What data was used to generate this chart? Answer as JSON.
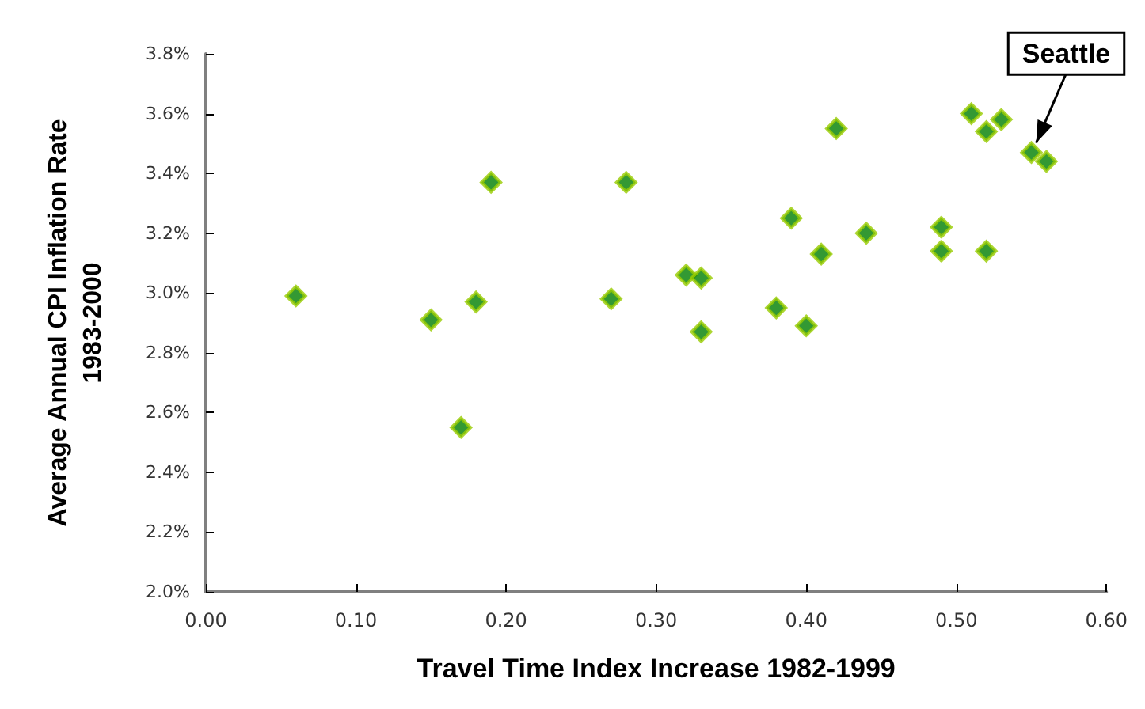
{
  "chart_data": {
    "type": "scatter",
    "xlabel": "Travel Time Index Increase 1982-1999",
    "ylabel": "Average Annual CPI Inflation Rate\n1983-2000",
    "x": [
      0.06,
      0.15,
      0.17,
      0.18,
      0.19,
      0.27,
      0.28,
      0.32,
      0.33,
      0.33,
      0.38,
      0.4,
      0.39,
      0.41,
      0.42,
      0.44,
      0.49,
      0.49,
      0.52,
      0.51,
      0.52,
      0.53,
      0.55,
      0.56
    ],
    "series": [
      {
        "color": "#008000",
        "values": [
          2.99,
          2.91,
          2.55,
          2.97,
          3.37,
          2.98,
          3.37,
          3.06,
          3.05,
          2.87,
          2.95,
          2.89,
          3.25,
          3.13,
          3.55,
          3.2,
          3.22,
          3.14,
          3.14,
          3.6,
          3.54,
          3.58,
          3.47,
          3.44
        ]
      }
    ],
    "xlim": [
      0,
      0.6
    ],
    "xticks": [
      {
        "value": 0,
        "label": "0.00"
      },
      {
        "value": 0.1,
        "label": "0.10"
      },
      {
        "value": 0.2,
        "label": "0.20"
      },
      {
        "value": 0.3,
        "label": "0.30"
      },
      {
        "value": 0.4,
        "label": "0.40"
      },
      {
        "value": 0.5,
        "label": "0.50"
      },
      {
        "value": 0.6,
        "label": "0.60"
      }
    ],
    "ylim": [
      2.0,
      3.8
    ],
    "yticks": [
      {
        "value": 2.0,
        "label": "2.0%"
      },
      {
        "value": 2.2,
        "label": "2.2%"
      },
      {
        "value": 2.4,
        "label": "2.4%"
      },
      {
        "value": 2.6,
        "label": "2.6%"
      },
      {
        "value": 2.8,
        "label": "2.8%"
      },
      {
        "value": 3.0,
        "label": "3.0%"
      },
      {
        "value": 3.2,
        "label": "3.2%"
      },
      {
        "value": 3.4,
        "label": "3.4%"
      },
      {
        "value": 3.6,
        "label": "3.6%"
      },
      {
        "value": 3.8,
        "label": "3.8%"
      }
    ],
    "annotations": [
      {
        "text": "Seattle",
        "x": 0.55,
        "y": 3.47
      }
    ],
    "marker": "diamond",
    "grid": false
  }
}
